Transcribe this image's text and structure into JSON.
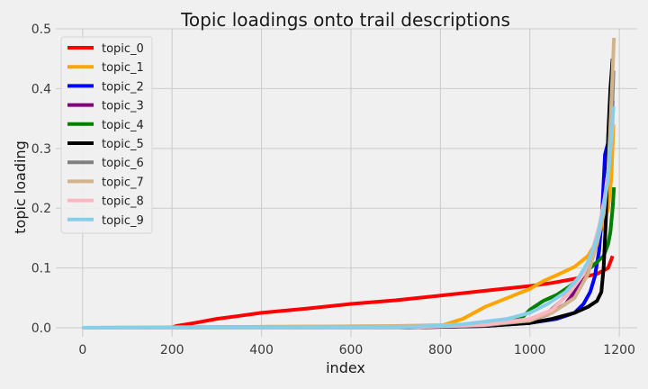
{
  "chart_data": {
    "type": "line",
    "title": "Topic loadings onto trail descriptions",
    "xlabel": "index",
    "ylabel": "topic loading",
    "xlim": [
      -60,
      1240
    ],
    "ylim": [
      -0.015,
      0.5
    ],
    "xticks": [
      0,
      200,
      400,
      600,
      800,
      1000,
      1200
    ],
    "yticks": [
      0.0,
      0.1,
      0.2,
      0.3,
      0.4,
      0.5
    ],
    "xtick_labels": [
      "0",
      "200",
      "400",
      "600",
      "800",
      "1000",
      "1200"
    ],
    "ytick_labels": [
      "0.0",
      "0.1",
      "0.2",
      "0.3",
      "0.4",
      "0.5"
    ],
    "grid": true,
    "legend_position": "top-left",
    "series": [
      {
        "name": "topic_0",
        "color": "#ff0000",
        "x": [
          0,
          195,
          210,
          250,
          300,
          350,
          400,
          500,
          600,
          700,
          800,
          900,
          1000,
          1050,
          1100,
          1150,
          1175,
          1185
        ],
        "y": [
          0,
          0,
          0.003,
          0.008,
          0.015,
          0.02,
          0.025,
          0.032,
          0.04,
          0.046,
          0.054,
          0.062,
          0.07,
          0.075,
          0.082,
          0.09,
          0.1,
          0.12
        ]
      },
      {
        "name": "topic_1",
        "color": "#ffa500",
        "x": [
          0,
          800,
          850,
          900,
          950,
          1000,
          1030,
          1060,
          1100,
          1130,
          1150,
          1165,
          1175,
          1182,
          1187
        ],
        "y": [
          0,
          0.003,
          0.015,
          0.035,
          0.05,
          0.065,
          0.078,
          0.088,
          0.102,
          0.12,
          0.145,
          0.17,
          0.2,
          0.25,
          0.34
        ]
      },
      {
        "name": "topic_2",
        "color": "#0000ff",
        "x": [
          0,
          700,
          900,
          1000,
          1060,
          1100,
          1120,
          1135,
          1145,
          1155,
          1162,
          1168,
          1175,
          1180,
          1185
        ],
        "y": [
          0,
          0,
          0.003,
          0.008,
          0.015,
          0.025,
          0.04,
          0.06,
          0.085,
          0.13,
          0.2,
          0.29,
          0.31,
          0.32,
          0.38
        ]
      },
      {
        "name": "topic_3",
        "color": "#800080",
        "x": [
          0,
          700,
          900,
          1000,
          1040,
          1080,
          1110,
          1130,
          1150,
          1160,
          1170,
          1178,
          1185
        ],
        "y": [
          0,
          0,
          0.004,
          0.012,
          0.022,
          0.04,
          0.07,
          0.11,
          0.15,
          0.18,
          0.22,
          0.28,
          0.35
        ]
      },
      {
        "name": "topic_4",
        "color": "#008000",
        "x": [
          0,
          700,
          900,
          980,
          1000,
          1030,
          1060,
          1090,
          1120,
          1150,
          1165,
          1175,
          1180,
          1185,
          1188
        ],
        "y": [
          0,
          0,
          0.005,
          0.015,
          0.03,
          0.045,
          0.055,
          0.07,
          0.09,
          0.11,
          0.12,
          0.14,
          0.16,
          0.2,
          0.235
        ]
      },
      {
        "name": "topic_5",
        "color": "#000000",
        "x": [
          0,
          700,
          900,
          1000,
          1050,
          1100,
          1130,
          1150,
          1160,
          1165,
          1170,
          1175,
          1180,
          1185
        ],
        "y": [
          0,
          0,
          0.003,
          0.008,
          0.015,
          0.025,
          0.035,
          0.045,
          0.06,
          0.1,
          0.18,
          0.32,
          0.4,
          0.45
        ]
      },
      {
        "name": "topic_6",
        "color": "#808080",
        "x": [
          0,
          700,
          900,
          1000,
          1040,
          1070,
          1100,
          1130,
          1150,
          1165,
          1175,
          1182,
          1187
        ],
        "y": [
          0,
          0,
          0.004,
          0.012,
          0.025,
          0.045,
          0.07,
          0.1,
          0.14,
          0.2,
          0.26,
          0.33,
          0.43
        ]
      },
      {
        "name": "topic_7",
        "color": "#d2b48c",
        "x": [
          0,
          700,
          900,
          1000,
          1050,
          1100,
          1130,
          1150,
          1165,
          1175,
          1180,
          1185,
          1188
        ],
        "y": [
          0,
          0.003,
          0.006,
          0.012,
          0.025,
          0.05,
          0.09,
          0.14,
          0.19,
          0.26,
          0.34,
          0.43,
          0.485
        ]
      },
      {
        "name": "topic_8",
        "color": "#ffb6c1",
        "x": [
          0,
          700,
          900,
          1000,
          1050,
          1090,
          1120,
          1140,
          1155,
          1168,
          1178,
          1185
        ],
        "y": [
          0,
          0,
          0.005,
          0.015,
          0.03,
          0.06,
          0.09,
          0.13,
          0.17,
          0.22,
          0.28,
          0.34
        ]
      },
      {
        "name": "topic_9",
        "color": "#87ceeb",
        "x": [
          0,
          700,
          850,
          950,
          1000,
          1040,
          1080,
          1110,
          1130,
          1150,
          1165,
          1175,
          1182,
          1187
        ],
        "y": [
          0,
          0,
          0.006,
          0.015,
          0.025,
          0.04,
          0.06,
          0.085,
          0.11,
          0.15,
          0.2,
          0.25,
          0.32,
          0.37
        ]
      }
    ]
  }
}
